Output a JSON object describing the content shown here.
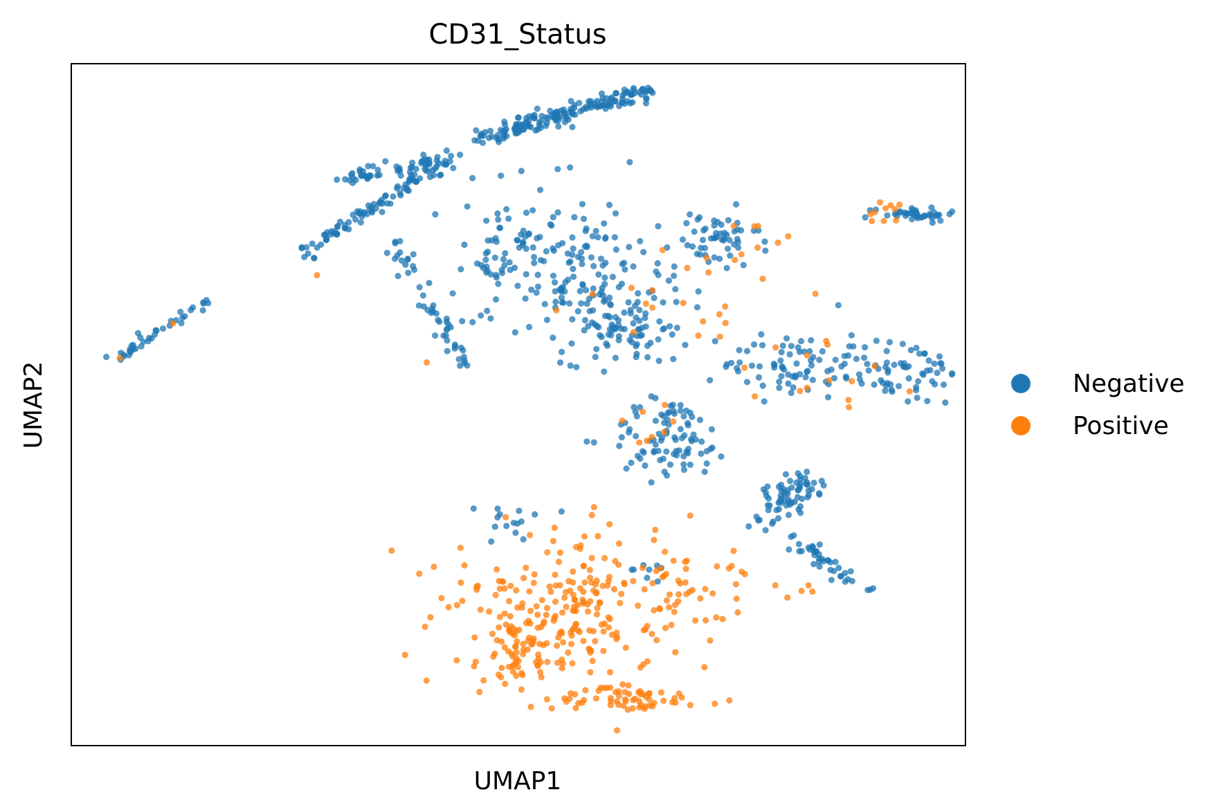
{
  "chart_data": {
    "type": "scatter",
    "title": "CD31_Status",
    "xlabel": "UMAP1",
    "ylabel": "UMAP2",
    "xlim": [
      0,
      10
    ],
    "ylim": [
      0,
      10
    ],
    "grid": false,
    "legend": {
      "placement": "right",
      "entries": [
        {
          "name": "Negative",
          "color": "#1f77b4"
        },
        {
          "name": "Positive",
          "color": "#ff7f0e"
        }
      ]
    },
    "series": [
      {
        "name": "Negative",
        "color": "#1f77b4",
        "clusters": [
          {
            "cx": 1.0,
            "cy": 5.7,
            "n": 38,
            "sx": 0.04,
            "sy": 0.04,
            "line": [
              0.48,
              5.65,
              1.55,
              6.55
            ]
          },
          {
            "cx": 2.8,
            "cy": 7.4,
            "n": 90,
            "sx": 0.05,
            "sy": 0.05,
            "line": [
              2.55,
              7.2,
              4.1,
              8.5
            ]
          },
          {
            "cx": 4.8,
            "cy": 8.3,
            "n": 170,
            "sx": 0.06,
            "sy": 0.06,
            "line": [
              4.55,
              8.9,
              6.45,
              9.6
            ]
          },
          {
            "cx": 3.9,
            "cy": 8.3,
            "n": 60,
            "sx": 0.06,
            "sy": 0.06,
            "line": [
              3.0,
              8.3,
              4.3,
              8.6
            ]
          },
          {
            "cx": 5.2,
            "cy": 7.3,
            "n": 110,
            "sx": 0.5,
            "sy": 0.6
          },
          {
            "cx": 6.0,
            "cy": 6.8,
            "n": 80,
            "sx": 0.5,
            "sy": 0.45
          },
          {
            "cx": 3.8,
            "cy": 6.3,
            "n": 50,
            "sx": 0.05,
            "sy": 0.05,
            "line": [
              3.6,
              7.4,
              4.4,
              5.5
            ]
          },
          {
            "cx": 4.7,
            "cy": 7.0,
            "n": 14,
            "sx": 0.15,
            "sy": 0.15
          },
          {
            "cx": 6.2,
            "cy": 6.1,
            "n": 70,
            "sx": 0.35,
            "sy": 0.25
          },
          {
            "cx": 7.2,
            "cy": 7.4,
            "n": 55,
            "sx": 0.25,
            "sy": 0.22
          },
          {
            "cx": 9.4,
            "cy": 7.8,
            "n": 40,
            "sx": 0.25,
            "sy": 0.05
          },
          {
            "cx": 8.0,
            "cy": 5.6,
            "n": 60,
            "sx": 0.35,
            "sy": 0.25
          },
          {
            "cx": 9.2,
            "cy": 5.5,
            "n": 80,
            "sx": 0.4,
            "sy": 0.25
          },
          {
            "cx": 6.7,
            "cy": 4.5,
            "n": 90,
            "sx": 0.35,
            "sy": 0.3
          },
          {
            "cx": 8.1,
            "cy": 3.5,
            "n": 70,
            "sx": 0.12,
            "sy": 0.12,
            "line": [
              7.7,
              3.4,
              8.3,
              3.9
            ]
          },
          {
            "cx": 8.5,
            "cy": 2.8,
            "n": 40,
            "sx": 0.06,
            "sy": 0.06,
            "line": [
              8.0,
              3.1,
              8.9,
              2.2
            ]
          },
          {
            "cx": 5.0,
            "cy": 3.3,
            "n": 15,
            "sx": 0.3,
            "sy": 0.15
          },
          {
            "cx": 6.5,
            "cy": 2.6,
            "n": 8,
            "sx": 0.1,
            "sy": 0.06
          }
        ]
      },
      {
        "name": "Positive",
        "color": "#ff7f0e",
        "clusters": [
          {
            "cx": 5.6,
            "cy": 2.0,
            "n": 240,
            "sx": 0.7,
            "sy": 0.6
          },
          {
            "cx": 5.0,
            "cy": 1.4,
            "n": 45,
            "sx": 0.18,
            "sy": 0.25
          },
          {
            "cx": 6.2,
            "cy": 0.7,
            "n": 60,
            "sx": 0.4,
            "sy": 0.1
          },
          {
            "cx": 6.9,
            "cy": 2.3,
            "n": 25,
            "sx": 0.35,
            "sy": 0.25
          },
          {
            "cx": 6.9,
            "cy": 6.5,
            "n": 18,
            "sx": 0.6,
            "sy": 0.3
          },
          {
            "cx": 7.6,
            "cy": 7.3,
            "n": 10,
            "sx": 0.25,
            "sy": 0.25
          },
          {
            "cx": 9.1,
            "cy": 7.8,
            "n": 10,
            "sx": 0.1,
            "sy": 0.1
          },
          {
            "cx": 8.5,
            "cy": 5.4,
            "n": 14,
            "sx": 0.5,
            "sy": 0.25
          },
          {
            "cx": 6.5,
            "cy": 4.6,
            "n": 8,
            "sx": 0.25,
            "sy": 0.25
          },
          {
            "cx": 8.3,
            "cy": 2.3,
            "n": 5,
            "sx": 0.2,
            "sy": 0.08
          },
          {
            "cx": 2.7,
            "cy": 6.9,
            "n": 1,
            "sx": 0.02,
            "sy": 0.02
          },
          {
            "cx": 4.0,
            "cy": 5.6,
            "n": 1,
            "sx": 0.02,
            "sy": 0.02
          },
          {
            "cx": 0.53,
            "cy": 5.7,
            "n": 1,
            "sx": 0.02,
            "sy": 0.02
          },
          {
            "cx": 1.1,
            "cy": 6.2,
            "n": 1,
            "sx": 0.02,
            "sy": 0.02
          }
        ]
      }
    ]
  }
}
